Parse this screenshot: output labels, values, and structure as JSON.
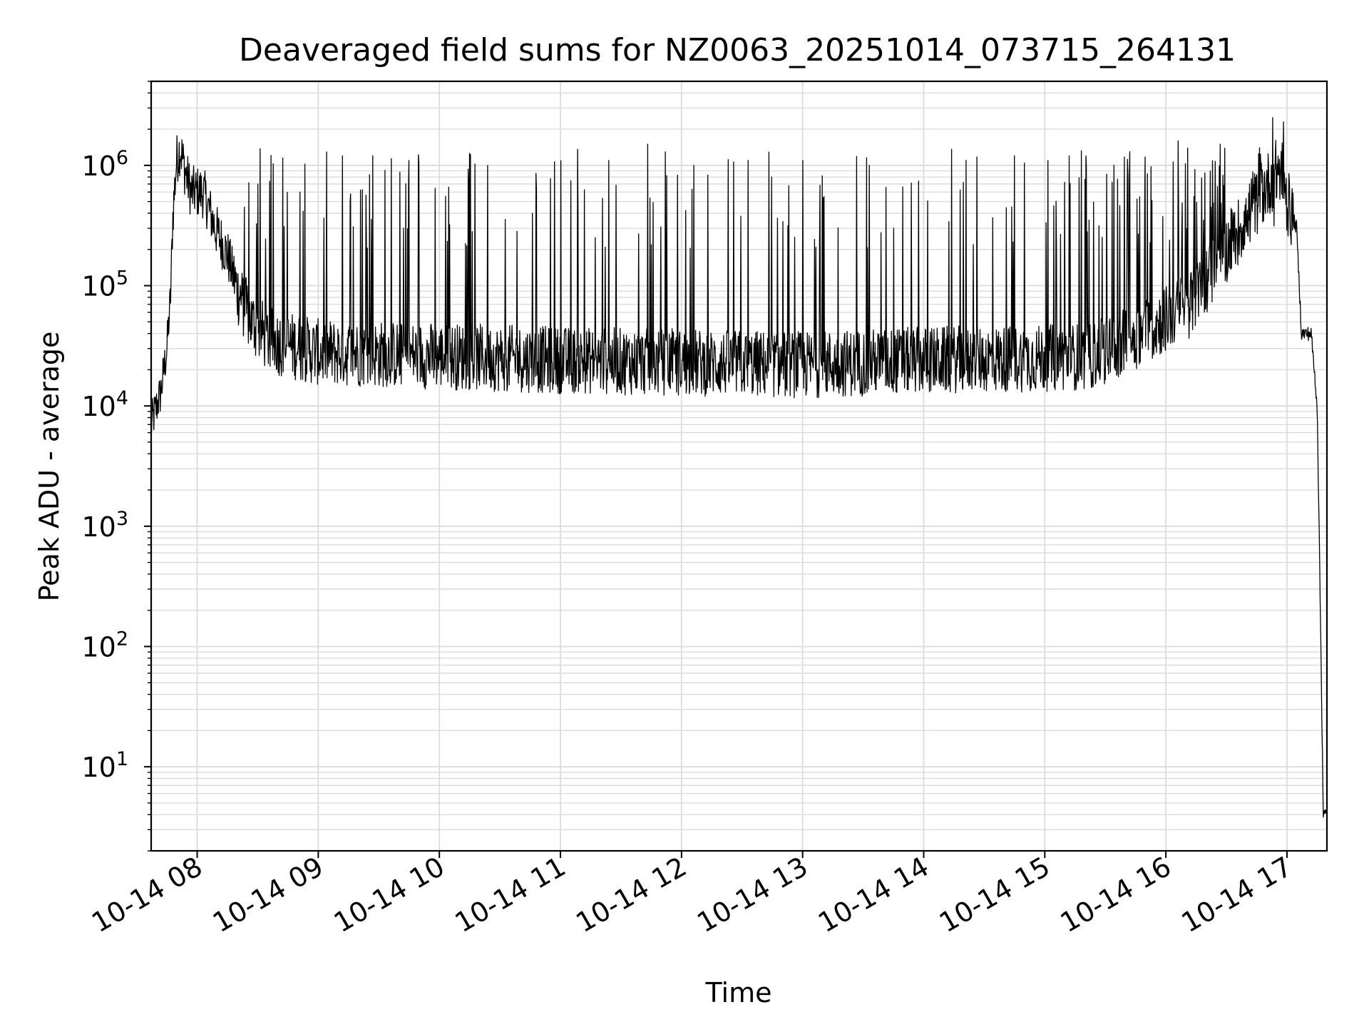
{
  "chart_data": {
    "type": "line",
    "title": "Deaveraged field sums for NZ0063_20251014_073715_264131",
    "xlabel": "Time",
    "ylabel": "Peak ADU - average",
    "yscale": "log",
    "ylim": [
      2,
      5000000
    ],
    "xlim_hours": [
      7.62,
      17.33
    ],
    "x_ticks": [
      {
        "hour": 8,
        "label": "10-14 08"
      },
      {
        "hour": 9,
        "label": "10-14 09"
      },
      {
        "hour": 10,
        "label": "10-14 10"
      },
      {
        "hour": 11,
        "label": "10-14 11"
      },
      {
        "hour": 12,
        "label": "10-14 12"
      },
      {
        "hour": 13,
        "label": "10-14 13"
      },
      {
        "hour": 14,
        "label": "10-14 14"
      },
      {
        "hour": 15,
        "label": "10-14 15"
      },
      {
        "hour": 16,
        "label": "10-14 16"
      },
      {
        "hour": 17,
        "label": "10-14 17"
      }
    ],
    "y_ticks": [
      {
        "exp": 1,
        "base": "10",
        "sup": "1"
      },
      {
        "exp": 2,
        "base": "10",
        "sup": "2"
      },
      {
        "exp": 3,
        "base": "10",
        "sup": "3"
      },
      {
        "exp": 4,
        "base": "10",
        "sup": "4"
      },
      {
        "exp": 5,
        "base": "10",
        "sup": "5"
      },
      {
        "exp": 6,
        "base": "10",
        "sup": "6"
      }
    ],
    "grid": true,
    "series": [
      {
        "name": "field sums",
        "color": "#000000",
        "envelope": [
          [
            7.62,
            7000
          ],
          [
            7.7,
            13000
          ],
          [
            7.75,
            30000
          ],
          [
            7.78,
            80000
          ],
          [
            7.8,
            400000
          ],
          [
            7.83,
            1100000
          ],
          [
            7.86,
            1400000
          ],
          [
            7.9,
            900000
          ],
          [
            7.95,
            600000
          ],
          [
            8.05,
            600000
          ],
          [
            8.15,
            300000
          ],
          [
            8.25,
            180000
          ],
          [
            8.35,
            80000
          ],
          [
            8.45,
            50000
          ],
          [
            8.6,
            35000
          ],
          [
            9.0,
            28000
          ],
          [
            10.0,
            26000
          ],
          [
            11.0,
            24000
          ],
          [
            12.0,
            23000
          ],
          [
            13.0,
            22000
          ],
          [
            14.0,
            24000
          ],
          [
            15.0,
            25000
          ],
          [
            15.4,
            26000
          ],
          [
            15.8,
            40000
          ],
          [
            16.2,
            70000
          ],
          [
            16.5,
            200000
          ],
          [
            16.8,
            600000
          ],
          [
            16.95,
            1000000
          ],
          [
            17.0,
            500000
          ],
          [
            17.08,
            300000
          ],
          [
            17.12,
            40000
          ],
          [
            17.2,
            40000
          ],
          [
            17.25,
            10000
          ],
          [
            17.28,
            100
          ],
          [
            17.3,
            4
          ]
        ],
        "spikes": [
          [
            8.5,
            700000
          ],
          [
            8.85,
            600000
          ],
          [
            9.2,
            1200000
          ],
          [
            9.45,
            1200000
          ],
          [
            9.75,
            1100000
          ],
          [
            10.4,
            1000000
          ],
          [
            10.77,
            400000
          ],
          [
            11.4,
            1100000
          ],
          [
            11.72,
            1500000
          ],
          [
            12.1,
            1000000
          ],
          [
            12.55,
            1100000
          ],
          [
            13.0,
            1100000
          ],
          [
            13.55,
            1000000
          ],
          [
            14.35,
            1100000
          ],
          [
            14.75,
            1200000
          ],
          [
            15.2,
            1200000
          ],
          [
            15.7,
            1300000
          ],
          [
            16.1,
            1600000
          ],
          [
            16.45,
            1500000
          ],
          [
            16.88,
            2500000
          ],
          [
            16.97,
            2300000
          ]
        ]
      }
    ]
  }
}
